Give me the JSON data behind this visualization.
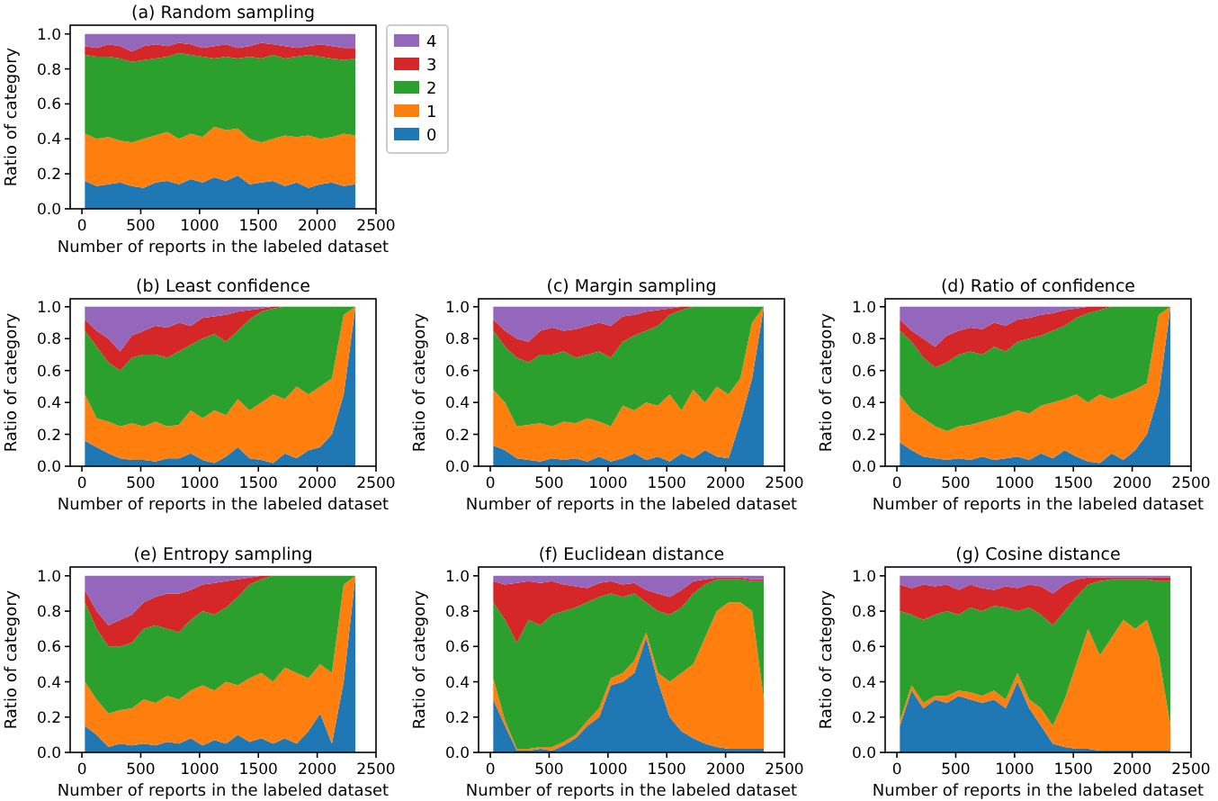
{
  "chart_data": [
    {
      "type": "area",
      "stacked": true,
      "title": "(a) Random sampling",
      "xlabel": "Number of reports in the labeled dataset",
      "ylabel": "Ratio of category",
      "legend": "right",
      "xlim": [
        -100,
        2500
      ],
      "xticks": [
        0,
        500,
        1000,
        1500,
        2000,
        2500
      ],
      "ylim": [
        0,
        1.05
      ],
      "yticks": [
        {
          "value": 0,
          "label": "0.0"
        },
        {
          "value": 0.2,
          "label": "0.2"
        },
        {
          "value": 0.4,
          "label": "0.4"
        },
        {
          "value": 0.6,
          "label": "0.6"
        },
        {
          "value": 0.8,
          "label": "0.8"
        },
        {
          "value": 1,
          "label": "1.0"
        }
      ],
      "x": [
        25,
        125,
        225,
        325,
        425,
        525,
        625,
        725,
        825,
        925,
        1025,
        1125,
        1225,
        1325,
        1425,
        1525,
        1625,
        1725,
        1825,
        1925,
        2025,
        2125,
        2225,
        2325
      ],
      "series": [
        {
          "name": "0",
          "color": "#1f77b4",
          "values": [
            0.16,
            0.13,
            0.14,
            0.15,
            0.13,
            0.12,
            0.15,
            0.16,
            0.14,
            0.17,
            0.15,
            0.18,
            0.16,
            0.19,
            0.14,
            0.15,
            0.16,
            0.13,
            0.15,
            0.12,
            0.14,
            0.15,
            0.13,
            0.14
          ]
        },
        {
          "name": "1",
          "color": "#ff7f0e",
          "values": [
            0.27,
            0.27,
            0.27,
            0.24,
            0.25,
            0.28,
            0.27,
            0.28,
            0.26,
            0.26,
            0.26,
            0.29,
            0.29,
            0.27,
            0.26,
            0.23,
            0.24,
            0.29,
            0.26,
            0.3,
            0.26,
            0.26,
            0.3,
            0.28
          ]
        },
        {
          "name": "2",
          "color": "#2ca02c",
          "values": [
            0.45,
            0.47,
            0.46,
            0.47,
            0.46,
            0.45,
            0.44,
            0.43,
            0.49,
            0.45,
            0.46,
            0.39,
            0.42,
            0.4,
            0.47,
            0.48,
            0.48,
            0.44,
            0.46,
            0.46,
            0.47,
            0.45,
            0.42,
            0.44
          ]
        },
        {
          "name": "3",
          "color": "#d62728",
          "values": [
            0.05,
            0.05,
            0.07,
            0.07,
            0.06,
            0.08,
            0.08,
            0.06,
            0.06,
            0.06,
            0.05,
            0.07,
            0.07,
            0.06,
            0.06,
            0.09,
            0.06,
            0.07,
            0.05,
            0.05,
            0.07,
            0.07,
            0.07,
            0.06
          ]
        },
        {
          "name": "4",
          "color": "#9467bd",
          "values": [
            0.07,
            0.08,
            0.06,
            0.07,
            0.1,
            0.07,
            0.06,
            0.07,
            0.05,
            0.06,
            0.08,
            0.07,
            0.06,
            0.08,
            0.07,
            0.05,
            0.06,
            0.07,
            0.08,
            0.07,
            0.06,
            0.07,
            0.08,
            0.08
          ]
        }
      ]
    },
    {
      "type": "area",
      "stacked": true,
      "title": "(b) Least confidence",
      "xlabel": "Number of reports in the labeled dataset",
      "ylabel": "Ratio of category",
      "xlim": [
        -100,
        2500
      ],
      "xticks": [
        0,
        500,
        1000,
        1500,
        2000,
        2500
      ],
      "ylim": [
        0,
        1.05
      ],
      "yticks": [
        {
          "value": 0,
          "label": "0.0"
        },
        {
          "value": 0.2,
          "label": "0.2"
        },
        {
          "value": 0.4,
          "label": "0.4"
        },
        {
          "value": 0.6,
          "label": "0.6"
        },
        {
          "value": 0.8,
          "label": "0.8"
        },
        {
          "value": 1,
          "label": "1.0"
        }
      ],
      "x": [
        25,
        125,
        225,
        325,
        425,
        525,
        625,
        725,
        825,
        925,
        1025,
        1125,
        1225,
        1325,
        1425,
        1525,
        1625,
        1725,
        1825,
        1925,
        2025,
        2125,
        2225,
        2325
      ],
      "series": [
        {
          "color": "#1f77b4",
          "values": [
            0.16,
            0.12,
            0.08,
            0.05,
            0.04,
            0.04,
            0.03,
            0.05,
            0.05,
            0.08,
            0.04,
            0.02,
            0.06,
            0.12,
            0.05,
            0.04,
            0.02,
            0.08,
            0.05,
            0.1,
            0.12,
            0.2,
            0.45,
            1
          ]
        },
        {
          "color": "#ff7f0e",
          "values": [
            0.29,
            0.18,
            0.2,
            0.2,
            0.23,
            0.21,
            0.25,
            0.2,
            0.21,
            0.27,
            0.26,
            0.33,
            0.26,
            0.3,
            0.3,
            0.36,
            0.43,
            0.34,
            0.45,
            0.35,
            0.38,
            0.35,
            0.5,
            0
          ]
        },
        {
          "color": "#2ca02c",
          "values": [
            0.4,
            0.45,
            0.37,
            0.35,
            0.41,
            0.45,
            0.42,
            0.43,
            0.46,
            0.41,
            0.5,
            0.48,
            0.46,
            0.43,
            0.57,
            0.57,
            0.54,
            0.58,
            0.5,
            0.55,
            0.5,
            0.45,
            0.05,
            0
          ]
        },
        {
          "color": "#d62728",
          "values": [
            0.07,
            0.1,
            0.15,
            0.12,
            0.14,
            0.15,
            0.18,
            0.19,
            0.18,
            0.12,
            0.13,
            0.11,
            0.17,
            0.12,
            0.06,
            0.02,
            0.01,
            0,
            0,
            0,
            0,
            0,
            0,
            0
          ]
        },
        {
          "color": "#9467bd",
          "values": [
            0.08,
            0.15,
            0.2,
            0.28,
            0.18,
            0.15,
            0.12,
            0.13,
            0.1,
            0.12,
            0.07,
            0.06,
            0.05,
            0.03,
            0.02,
            0.01,
            0,
            0,
            0,
            0,
            0,
            0,
            0,
            0
          ]
        }
      ]
    },
    {
      "type": "area",
      "stacked": true,
      "title": "(c) Margin sampling",
      "xlabel": "Number of reports in the labeled dataset",
      "ylabel": "Ratio of category",
      "xlim": [
        -100,
        2500
      ],
      "xticks": [
        0,
        500,
        1000,
        1500,
        2000,
        2500
      ],
      "ylim": [
        0,
        1.05
      ],
      "yticks": [
        {
          "value": 0,
          "label": "0.0"
        },
        {
          "value": 0.2,
          "label": "0.2"
        },
        {
          "value": 0.4,
          "label": "0.4"
        },
        {
          "value": 0.6,
          "label": "0.6"
        },
        {
          "value": 0.8,
          "label": "0.8"
        },
        {
          "value": 1,
          "label": "1.0"
        }
      ],
      "x": [
        25,
        125,
        225,
        325,
        425,
        525,
        625,
        725,
        825,
        925,
        1025,
        1125,
        1225,
        1325,
        1425,
        1525,
        1625,
        1725,
        1825,
        1925,
        2025,
        2125,
        2225,
        2325
      ],
      "series": [
        {
          "color": "#1f77b4",
          "values": [
            0.13,
            0.1,
            0.05,
            0.04,
            0.03,
            0.05,
            0.04,
            0.05,
            0.03,
            0.06,
            0.03,
            0.05,
            0.08,
            0.04,
            0.06,
            0.03,
            0.08,
            0.05,
            0.1,
            0.06,
            0.05,
            0.28,
            0.55,
            1
          ]
        },
        {
          "color": "#ff7f0e",
          "values": [
            0.35,
            0.3,
            0.2,
            0.22,
            0.24,
            0.2,
            0.24,
            0.22,
            0.27,
            0.22,
            0.22,
            0.33,
            0.27,
            0.36,
            0.32,
            0.42,
            0.27,
            0.43,
            0.3,
            0.44,
            0.4,
            0.27,
            0.35,
            0
          ]
        },
        {
          "color": "#2ca02c",
          "values": [
            0.37,
            0.35,
            0.43,
            0.39,
            0.43,
            0.45,
            0.44,
            0.41,
            0.4,
            0.44,
            0.43,
            0.4,
            0.47,
            0.45,
            0.5,
            0.5,
            0.63,
            0.52,
            0.6,
            0.5,
            0.55,
            0.45,
            0.1,
            0
          ]
        },
        {
          "color": "#d62728",
          "values": [
            0.07,
            0.1,
            0.12,
            0.13,
            0.15,
            0.17,
            0.13,
            0.18,
            0.18,
            0.18,
            0.2,
            0.16,
            0.13,
            0.12,
            0.1,
            0.04,
            0.02,
            0,
            0,
            0,
            0,
            0,
            0,
            0
          ]
        },
        {
          "color": "#9467bd",
          "values": [
            0.08,
            0.15,
            0.2,
            0.22,
            0.15,
            0.13,
            0.15,
            0.14,
            0.12,
            0.1,
            0.12,
            0.06,
            0.05,
            0.03,
            0.02,
            0.01,
            0,
            0,
            0,
            0,
            0,
            0,
            0,
            0
          ]
        }
      ]
    },
    {
      "type": "area",
      "stacked": true,
      "title": "(d) Ratio of confidence",
      "xlabel": "Number of reports in the labeled dataset",
      "ylabel": "Ratio of category",
      "xlim": [
        -100,
        2500
      ],
      "xticks": [
        0,
        500,
        1000,
        1500,
        2000,
        2500
      ],
      "ylim": [
        0,
        1.05
      ],
      "yticks": [
        {
          "value": 0,
          "label": "0.0"
        },
        {
          "value": 0.2,
          "label": "0.2"
        },
        {
          "value": 0.4,
          "label": "0.4"
        },
        {
          "value": 0.6,
          "label": "0.6"
        },
        {
          "value": 0.8,
          "label": "0.8"
        },
        {
          "value": 1,
          "label": "1.0"
        }
      ],
      "x": [
        25,
        125,
        225,
        325,
        425,
        525,
        625,
        725,
        825,
        925,
        1025,
        1125,
        1225,
        1325,
        1425,
        1525,
        1625,
        1725,
        1825,
        1925,
        2025,
        2125,
        2225,
        2325
      ],
      "series": [
        {
          "color": "#1f77b4",
          "values": [
            0.15,
            0.1,
            0.06,
            0.05,
            0.04,
            0.05,
            0.04,
            0.06,
            0.04,
            0.05,
            0.06,
            0.04,
            0.08,
            0.05,
            0.1,
            0.06,
            0.03,
            0.02,
            0.08,
            0.04,
            0.1,
            0.2,
            0.45,
            1
          ]
        },
        {
          "color": "#ff7f0e",
          "values": [
            0.3,
            0.25,
            0.24,
            0.2,
            0.18,
            0.2,
            0.22,
            0.22,
            0.26,
            0.27,
            0.29,
            0.29,
            0.3,
            0.35,
            0.32,
            0.39,
            0.37,
            0.43,
            0.34,
            0.41,
            0.38,
            0.32,
            0.5,
            0
          ]
        },
        {
          "color": "#2ca02c",
          "values": [
            0.4,
            0.43,
            0.38,
            0.37,
            0.43,
            0.45,
            0.46,
            0.42,
            0.45,
            0.4,
            0.43,
            0.47,
            0.44,
            0.45,
            0.46,
            0.48,
            0.56,
            0.53,
            0.58,
            0.55,
            0.52,
            0.48,
            0.05,
            0
          ]
        },
        {
          "color": "#d62728",
          "values": [
            0.07,
            0.07,
            0.12,
            0.13,
            0.17,
            0.15,
            0.15,
            0.16,
            0.15,
            0.16,
            0.14,
            0.13,
            0.13,
            0.11,
            0.1,
            0.06,
            0.04,
            0.02,
            0,
            0,
            0,
            0,
            0,
            0
          ]
        },
        {
          "color": "#9467bd",
          "values": [
            0.08,
            0.15,
            0.2,
            0.25,
            0.18,
            0.15,
            0.13,
            0.14,
            0.1,
            0.12,
            0.08,
            0.07,
            0.05,
            0.04,
            0.02,
            0.01,
            0,
            0,
            0,
            0,
            0,
            0,
            0,
            0
          ]
        }
      ]
    },
    {
      "type": "area",
      "stacked": true,
      "title": "(e) Entropy sampling",
      "xlabel": "Number of reports in the labeled dataset",
      "ylabel": "Ratio of category",
      "xlim": [
        -100,
        2500
      ],
      "xticks": [
        0,
        500,
        1000,
        1500,
        2000,
        2500
      ],
      "ylim": [
        0,
        1.05
      ],
      "yticks": [
        {
          "value": 0,
          "label": "0.0"
        },
        {
          "value": 0.2,
          "label": "0.2"
        },
        {
          "value": 0.4,
          "label": "0.4"
        },
        {
          "value": 0.6,
          "label": "0.6"
        },
        {
          "value": 0.8,
          "label": "0.8"
        },
        {
          "value": 1,
          "label": "1.0"
        }
      ],
      "x": [
        25,
        125,
        225,
        325,
        425,
        525,
        625,
        725,
        825,
        925,
        1025,
        1125,
        1225,
        1325,
        1425,
        1525,
        1625,
        1725,
        1825,
        1925,
        2025,
        2125,
        2225,
        2325
      ],
      "series": [
        {
          "color": "#1f77b4",
          "values": [
            0.15,
            0.1,
            0.03,
            0.05,
            0.04,
            0.05,
            0.04,
            0.06,
            0.05,
            0.08,
            0.04,
            0.07,
            0.05,
            0.1,
            0.06,
            0.08,
            0.05,
            0.08,
            0.05,
            0.12,
            0.22,
            0.05,
            0.4,
            1
          ]
        },
        {
          "color": "#ff7f0e",
          "values": [
            0.25,
            0.2,
            0.19,
            0.19,
            0.21,
            0.25,
            0.24,
            0.26,
            0.25,
            0.27,
            0.34,
            0.28,
            0.35,
            0.28,
            0.36,
            0.37,
            0.35,
            0.4,
            0.4,
            0.3,
            0.28,
            0.4,
            0.55,
            0
          ]
        },
        {
          "color": "#2ca02c",
          "values": [
            0.45,
            0.4,
            0.38,
            0.36,
            0.37,
            0.4,
            0.44,
            0.38,
            0.38,
            0.4,
            0.42,
            0.43,
            0.42,
            0.5,
            0.53,
            0.53,
            0.6,
            0.52,
            0.55,
            0.58,
            0.5,
            0.55,
            0.05,
            0
          ]
        },
        {
          "color": "#d62728",
          "values": [
            0.07,
            0.1,
            0.12,
            0.15,
            0.16,
            0.15,
            0.16,
            0.2,
            0.22,
            0.17,
            0.15,
            0.18,
            0.15,
            0.1,
            0.04,
            0.02,
            0,
            0,
            0,
            0,
            0,
            0,
            0,
            0
          ]
        },
        {
          "color": "#9467bd",
          "values": [
            0.08,
            0.2,
            0.28,
            0.25,
            0.22,
            0.15,
            0.12,
            0.1,
            0.1,
            0.08,
            0.05,
            0.04,
            0.03,
            0.02,
            0.01,
            0,
            0,
            0,
            0,
            0,
            0,
            0,
            0,
            0
          ]
        }
      ]
    },
    {
      "type": "area",
      "stacked": true,
      "title": "(f) Euclidean distance",
      "xlabel": "Number of reports in the labeled dataset",
      "ylabel": "Ratio of category",
      "xlim": [
        -100,
        2500
      ],
      "xticks": [
        0,
        500,
        1000,
        1500,
        2000,
        2500
      ],
      "ylim": [
        0,
        1.05
      ],
      "yticks": [
        {
          "value": 0,
          "label": "0.0"
        },
        {
          "value": 0.2,
          "label": "0.2"
        },
        {
          "value": 0.4,
          "label": "0.4"
        },
        {
          "value": 0.6,
          "label": "0.6"
        },
        {
          "value": 0.8,
          "label": "0.8"
        },
        {
          "value": 1,
          "label": "1.0"
        }
      ],
      "x": [
        25,
        125,
        225,
        325,
        425,
        525,
        625,
        725,
        825,
        925,
        1025,
        1125,
        1225,
        1325,
        1425,
        1525,
        1625,
        1725,
        1825,
        1925,
        2025,
        2125,
        2225,
        2325
      ],
      "series": [
        {
          "color": "#1f77b4",
          "values": [
            0.3,
            0.15,
            0.01,
            0.01,
            0.02,
            0.01,
            0.04,
            0.08,
            0.15,
            0.2,
            0.38,
            0.4,
            0.45,
            0.65,
            0.4,
            0.2,
            0.12,
            0.08,
            0.05,
            0.03,
            0.02,
            0.02,
            0.02,
            0.02
          ]
        },
        {
          "color": "#ff7f0e",
          "values": [
            0.12,
            0.03,
            0.01,
            0.01,
            0.01,
            0.02,
            0.02,
            0.02,
            0.03,
            0.05,
            0.04,
            0.05,
            0.07,
            0.03,
            0.05,
            0.2,
            0.33,
            0.42,
            0.6,
            0.77,
            0.83,
            0.83,
            0.78,
            0.28
          ]
        },
        {
          "color": "#2ca02c",
          "values": [
            0.43,
            0.57,
            0.6,
            0.73,
            0.69,
            0.75,
            0.74,
            0.72,
            0.67,
            0.63,
            0.48,
            0.43,
            0.38,
            0.17,
            0.35,
            0.38,
            0.37,
            0.4,
            0.3,
            0.18,
            0.13,
            0.13,
            0.17,
            0.67
          ]
        },
        {
          "color": "#d62728",
          "values": [
            0.12,
            0.2,
            0.34,
            0.22,
            0.24,
            0.19,
            0.15,
            0.12,
            0.08,
            0.08,
            0.07,
            0.07,
            0.06,
            0.07,
            0.1,
            0.1,
            0.1,
            0.07,
            0.03,
            0.01,
            0.01,
            0.01,
            0.01,
            0.01
          ]
        },
        {
          "color": "#9467bd",
          "values": [
            0.03,
            0.05,
            0.04,
            0.03,
            0.04,
            0.03,
            0.05,
            0.06,
            0.07,
            0.04,
            0.03,
            0.05,
            0.04,
            0.08,
            0.1,
            0.12,
            0.08,
            0.03,
            0.02,
            0.01,
            0.01,
            0.01,
            0.02,
            0.02
          ]
        }
      ]
    },
    {
      "type": "area",
      "stacked": true,
      "title": "(g) Cosine distance",
      "xlabel": "Number of reports in the labeled dataset",
      "ylabel": "Ratio of category",
      "xlim": [
        -100,
        2500
      ],
      "xticks": [
        0,
        500,
        1000,
        1500,
        2000,
        2500
      ],
      "ylim": [
        0,
        1.05
      ],
      "yticks": [
        {
          "value": 0,
          "label": "0.0"
        },
        {
          "value": 0.2,
          "label": "0.2"
        },
        {
          "value": 0.4,
          "label": "0.4"
        },
        {
          "value": 0.6,
          "label": "0.6"
        },
        {
          "value": 0.8,
          "label": "0.8"
        },
        {
          "value": 1,
          "label": "1.0"
        }
      ],
      "x": [
        25,
        125,
        225,
        325,
        425,
        525,
        625,
        725,
        825,
        925,
        1025,
        1125,
        1225,
        1325,
        1425,
        1525,
        1625,
        1725,
        1825,
        1925,
        2025,
        2125,
        2225,
        2325
      ],
      "series": [
        {
          "color": "#1f77b4",
          "values": [
            0.15,
            0.35,
            0.25,
            0.3,
            0.28,
            0.32,
            0.3,
            0.28,
            0.3,
            0.25,
            0.4,
            0.25,
            0.15,
            0.05,
            0.03,
            0.02,
            0.02,
            0.01,
            0.01,
            0.01,
            0.01,
            0.01,
            0.01,
            0.01
          ]
        },
        {
          "color": "#ff7f0e",
          "values": [
            0.03,
            0.03,
            0.03,
            0.02,
            0.04,
            0.03,
            0.04,
            0.04,
            0.05,
            0.05,
            0.05,
            0.05,
            0.1,
            0.1,
            0.27,
            0.48,
            0.68,
            0.54,
            0.64,
            0.74,
            0.69,
            0.74,
            0.54,
            0.14
          ]
        },
        {
          "color": "#2ca02c",
          "values": [
            0.62,
            0.4,
            0.47,
            0.46,
            0.48,
            0.43,
            0.48,
            0.48,
            0.48,
            0.52,
            0.35,
            0.52,
            0.53,
            0.57,
            0.5,
            0.38,
            0.25,
            0.42,
            0.33,
            0.23,
            0.28,
            0.23,
            0.42,
            0.82
          ]
        },
        {
          "color": "#d62728",
          "values": [
            0.15,
            0.15,
            0.2,
            0.16,
            0.15,
            0.14,
            0.13,
            0.13,
            0.09,
            0.12,
            0.13,
            0.13,
            0.16,
            0.18,
            0.15,
            0.1,
            0.04,
            0.02,
            0.01,
            0.01,
            0.01,
            0.01,
            0.02,
            0.02
          ]
        },
        {
          "color": "#9467bd",
          "values": [
            0.05,
            0.07,
            0.05,
            0.06,
            0.05,
            0.08,
            0.05,
            0.07,
            0.08,
            0.06,
            0.07,
            0.05,
            0.06,
            0.1,
            0.05,
            0.02,
            0.01,
            0.01,
            0.01,
            0.01,
            0.01,
            0.01,
            0.01,
            0.01
          ]
        }
      ]
    }
  ]
}
